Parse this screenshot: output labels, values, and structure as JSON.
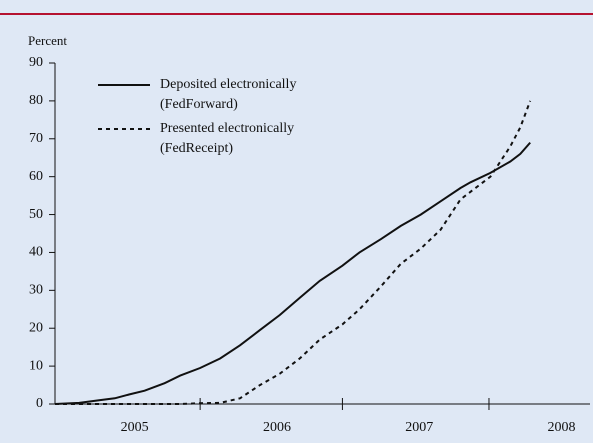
{
  "chart_data": {
    "type": "line",
    "ylabel": "Percent",
    "x": [
      2004.44,
      2004.61,
      2004.75,
      2004.86,
      2004.96,
      2005.07,
      2005.21,
      2005.32,
      2005.46,
      2005.6,
      2005.74,
      2005.88,
      2006.02,
      2006.16,
      2006.3,
      2006.46,
      2006.58,
      2006.73,
      2006.87,
      2007.01,
      2007.15,
      2007.29,
      2007.36,
      2007.5,
      2007.64,
      2007.71,
      2007.78
    ],
    "series": [
      {
        "name": [
          "Deposited electronically",
          "(FedForward)"
        ],
        "color": "#111111",
        "dash": "solid",
        "values": [
          0,
          0.3,
          1,
          1.5,
          2.5,
          3.5,
          5.5,
          7.5,
          9.5,
          12,
          15.5,
          19.5,
          23.5,
          28,
          32.5,
          36.5,
          40,
          43.5,
          47,
          50,
          53.5,
          57,
          58.5,
          61,
          64,
          66,
          69
        ]
      },
      {
        "name": [
          "Presented electronically",
          "(FedReceipt)"
        ],
        "color": "#111111",
        "dash": "dotted",
        "values": [
          0,
          0,
          0,
          0,
          0,
          0,
          0,
          0,
          0.2,
          0.3,
          1.5,
          5,
          8,
          12,
          17,
          21,
          25,
          31,
          37,
          41,
          46,
          54,
          56,
          60,
          68,
          73,
          80
        ]
      }
    ],
    "xlim": [
      2004.44,
      2008.2
    ],
    "xticks": [
      2005,
      2006,
      2007,
      2008
    ],
    "xtick_marks": [
      2005.46,
      2006.46,
      2007.49
    ],
    "ylim": [
      0,
      90
    ],
    "yticks": [
      0,
      10,
      20,
      30,
      40,
      50,
      60,
      70,
      80,
      90
    ],
    "grid": false
  }
}
